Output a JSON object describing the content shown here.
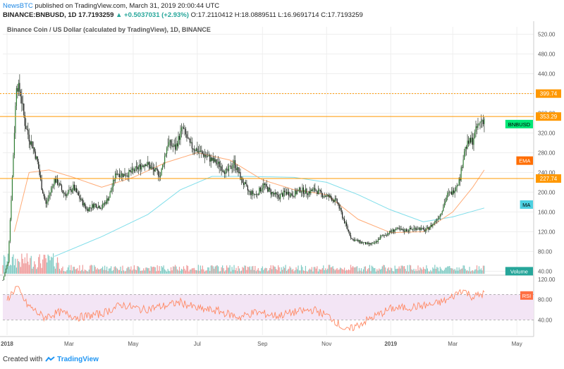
{
  "header": {
    "publisher": "NewsBTC",
    "published_text": "published on TradingView.com, March 31, 2019 20:00:44 UTC",
    "symbol": "BINANCE:BNBUSD, 1D",
    "last": "17.7193259",
    "change": "+0.5037031 (+2.93%)",
    "ohlc": "O:17.2110412 H:18.0889511 L:16.9691714 C:17.7193259"
  },
  "footer": {
    "created_with": "Created with",
    "brand": "TradingView"
  },
  "chart_data": {
    "type": "candlestick",
    "title": "Binance Coin / US Dollar (calculated by TradingView), 1D, BINANCE",
    "y_ticks": [
      "520.00",
      "480.00",
      "440.00",
      "400.00",
      "360.00",
      "320.00",
      "280.00",
      "240.00",
      "200.00",
      "160.00",
      "120.00",
      "80.00",
      "40.00"
    ],
    "ylim": [
      32,
      535
    ],
    "x_ticks": [
      "2018",
      "Mar",
      "May",
      "Jul",
      "Sep",
      "Nov",
      "2019",
      "Mar",
      "May"
    ],
    "x_tick_dates": [
      "2018-01-01",
      "2018-03-01",
      "2018-05-01",
      "2018-07-01",
      "2018-09-01",
      "2018-11-01",
      "2019-01-01",
      "2019-03-01",
      "2019-05-01"
    ],
    "x_range": [
      "2017-12-28",
      "2019-05-17"
    ],
    "price_series": [
      [
        "2017-12-28",
        22
      ],
      [
        "2018-01-02",
        60
      ],
      [
        "2018-01-06",
        230
      ],
      [
        "2018-01-10",
        420
      ],
      [
        "2018-01-14",
        400
      ],
      [
        "2018-01-18",
        340
      ],
      [
        "2018-01-22",
        310
      ],
      [
        "2018-01-26",
        290
      ],
      [
        "2018-01-30",
        260
      ],
      [
        "2018-02-03",
        210
      ],
      [
        "2018-02-07",
        175
      ],
      [
        "2018-02-11",
        200
      ],
      [
        "2018-02-15",
        225
      ],
      [
        "2018-02-19",
        218
      ],
      [
        "2018-02-23",
        200
      ],
      [
        "2018-02-27",
        195
      ],
      [
        "2018-03-05",
        210
      ],
      [
        "2018-03-12",
        185
      ],
      [
        "2018-03-18",
        165
      ],
      [
        "2018-03-25",
        175
      ],
      [
        "2018-04-01",
        170
      ],
      [
        "2018-04-08",
        190
      ],
      [
        "2018-04-15",
        240
      ],
      [
        "2018-04-22",
        235
      ],
      [
        "2018-04-29",
        240
      ],
      [
        "2018-05-06",
        250
      ],
      [
        "2018-05-13",
        260
      ],
      [
        "2018-05-20",
        245
      ],
      [
        "2018-05-27",
        235
      ],
      [
        "2018-06-03",
        300
      ],
      [
        "2018-06-10",
        290
      ],
      [
        "2018-06-17",
        330
      ],
      [
        "2018-06-24",
        295
      ],
      [
        "2018-07-01",
        285
      ],
      [
        "2018-07-08",
        275
      ],
      [
        "2018-07-15",
        265
      ],
      [
        "2018-07-22",
        255
      ],
      [
        "2018-07-29",
        240
      ],
      [
        "2018-08-05",
        260
      ],
      [
        "2018-08-12",
        225
      ],
      [
        "2018-08-19",
        200
      ],
      [
        "2018-08-26",
        195
      ],
      [
        "2018-09-02",
        215
      ],
      [
        "2018-09-09",
        200
      ],
      [
        "2018-09-16",
        190
      ],
      [
        "2018-09-23",
        200
      ],
      [
        "2018-09-30",
        195
      ],
      [
        "2018-10-07",
        205
      ],
      [
        "2018-10-14",
        200
      ],
      [
        "2018-10-21",
        205
      ],
      [
        "2018-10-28",
        195
      ],
      [
        "2018-11-04",
        190
      ],
      [
        "2018-11-11",
        180
      ],
      [
        "2018-11-18",
        140
      ],
      [
        "2018-11-25",
        105
      ],
      [
        "2018-12-02",
        100
      ],
      [
        "2018-12-09",
        95
      ],
      [
        "2018-12-16",
        95
      ],
      [
        "2018-12-23",
        110
      ],
      [
        "2018-12-30",
        118
      ],
      [
        "2019-01-06",
        125
      ],
      [
        "2019-01-13",
        122
      ],
      [
        "2019-01-20",
        125
      ],
      [
        "2019-01-27",
        128
      ],
      [
        "2019-02-03",
        122
      ],
      [
        "2019-02-10",
        135
      ],
      [
        "2019-02-17",
        155
      ],
      [
        "2019-02-24",
        195
      ],
      [
        "2019-03-01",
        200
      ],
      [
        "2019-03-08",
        230
      ],
      [
        "2019-03-12",
        285
      ],
      [
        "2019-03-16",
        300
      ],
      [
        "2019-03-20",
        305
      ],
      [
        "2019-03-24",
        330
      ],
      [
        "2019-03-28",
        345
      ],
      [
        "2019-03-31",
        348
      ]
    ],
    "ema": [
      [
        "2018-01-08",
        120
      ],
      [
        "2018-01-22",
        240
      ],
      [
        "2018-02-10",
        245
      ],
      [
        "2018-03-05",
        230
      ],
      [
        "2018-04-01",
        210
      ],
      [
        "2018-05-01",
        230
      ],
      [
        "2018-06-01",
        260
      ],
      [
        "2018-07-01",
        280
      ],
      [
        "2018-08-01",
        265
      ],
      [
        "2018-09-01",
        225
      ],
      [
        "2018-10-01",
        205
      ],
      [
        "2018-11-01",
        195
      ],
      [
        "2018-12-01",
        145
      ],
      [
        "2019-01-01",
        118
      ],
      [
        "2019-02-01",
        120
      ],
      [
        "2019-03-01",
        160
      ],
      [
        "2019-03-20",
        210
      ],
      [
        "2019-03-31",
        245
      ]
    ],
    "ma": [
      [
        "2018-02-15",
        70
      ],
      [
        "2018-04-01",
        110
      ],
      [
        "2018-05-15",
        155
      ],
      [
        "2018-06-15",
        205
      ],
      [
        "2018-07-15",
        232
      ],
      [
        "2018-08-15",
        232
      ],
      [
        "2018-10-01",
        230
      ],
      [
        "2018-11-01",
        220
      ],
      [
        "2018-12-01",
        195
      ],
      [
        "2018-12-31",
        165
      ],
      [
        "2019-02-01",
        140
      ],
      [
        "2019-03-01",
        150
      ],
      [
        "2019-03-31",
        168
      ]
    ],
    "horizontal_lines": [
      {
        "label": "399.74",
        "value": 399.74,
        "color": "#ff9800",
        "style": "dotted"
      },
      {
        "label": "353.29",
        "value": 353.29,
        "color": "#ff9800",
        "style": "solid"
      },
      {
        "label": "227.74",
        "value": 227.74,
        "color": "#ff9800",
        "style": "solid"
      }
    ],
    "tags": [
      {
        "label": "BNBUSD",
        "value": 338,
        "color": "#00e676",
        "text_color": "#000000"
      },
      {
        "label": "EMA",
        "value": 264,
        "color": "#ff6d00",
        "text_color": "#ffffff"
      },
      {
        "label": "MA",
        "value": 175,
        "color": "#4dd0e1",
        "text_color": "#000000"
      },
      {
        "label": "Volume",
        "value": 40,
        "color": "#26a69a",
        "text_color": "#ffffff"
      }
    ],
    "rsi": {
      "label": "RSI",
      "y_ticks": [
        "120.00",
        "80.00",
        "40.00"
      ],
      "ylim": [
        10,
        128
      ],
      "band": [
        40,
        90
      ],
      "values": [
        [
          "2018-01-01",
          80
        ],
        [
          "2018-01-10",
          105
        ],
        [
          "2018-01-20",
          70
        ],
        [
          "2018-02-05",
          45
        ],
        [
          "2018-02-20",
          55
        ],
        [
          "2018-03-10",
          45
        ],
        [
          "2018-04-01",
          52
        ],
        [
          "2018-04-20",
          70
        ],
        [
          "2018-05-10",
          60
        ],
        [
          "2018-06-01",
          68
        ],
        [
          "2018-06-15",
          75
        ],
        [
          "2018-07-01",
          62
        ],
        [
          "2018-07-20",
          58
        ],
        [
          "2018-08-10",
          45
        ],
        [
          "2018-08-25",
          55
        ],
        [
          "2018-09-15",
          48
        ],
        [
          "2018-10-01",
          55
        ],
        [
          "2018-10-20",
          60
        ],
        [
          "2018-11-05",
          45
        ],
        [
          "2018-11-20",
          18
        ],
        [
          "2018-12-01",
          30
        ],
        [
          "2018-12-15",
          45
        ],
        [
          "2019-01-01",
          62
        ],
        [
          "2019-01-20",
          65
        ],
        [
          "2019-02-10",
          70
        ],
        [
          "2019-02-25",
          80
        ],
        [
          "2019-03-10",
          100
        ],
        [
          "2019-03-20",
          85
        ],
        [
          "2019-03-31",
          92
        ]
      ]
    },
    "colors": {
      "up": "#26a69a",
      "down": "#ef5350",
      "candle": "#1b5e20",
      "ema": "#ffab76",
      "ma": "#80deea",
      "rsi": "#ff8a65",
      "rsi_band": "#f3e5f5",
      "grid": "#eeeeee"
    }
  }
}
